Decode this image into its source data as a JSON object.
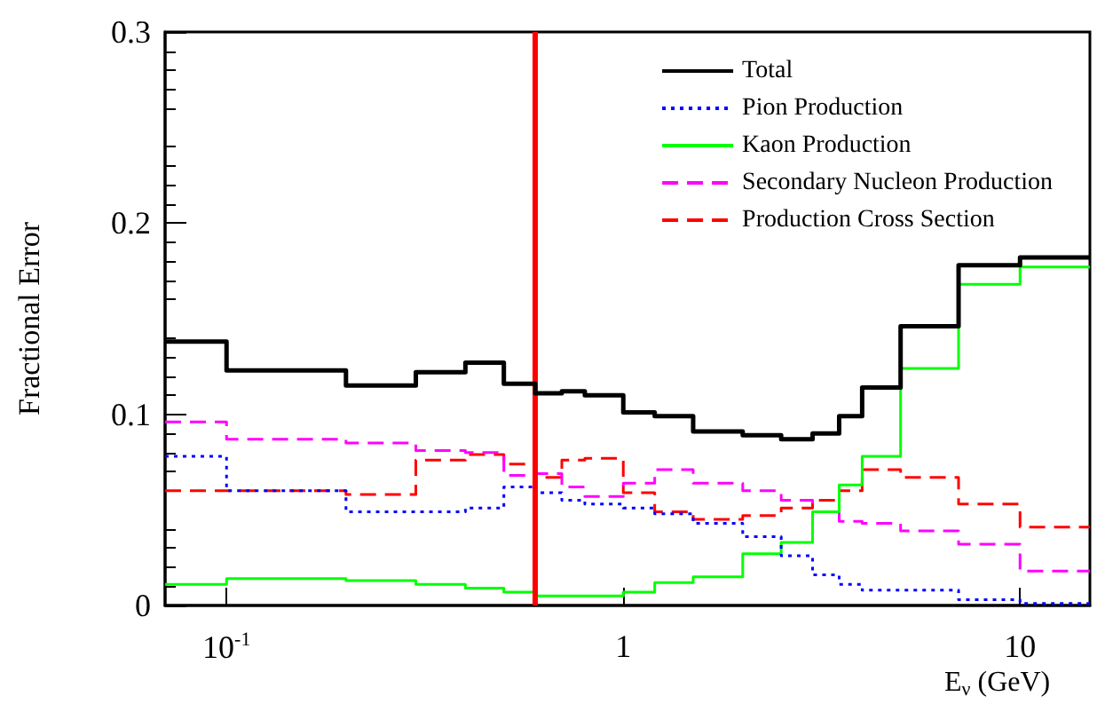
{
  "chart_data": {
    "type": "step",
    "xlabel": "E$_{ν}$ (GeV)",
    "ylabel": "Fractional Error",
    "x": [
      0.07,
      0.1,
      0.2,
      0.3,
      0.4,
      0.5,
      0.6,
      0.7,
      0.8,
      1.0,
      1.2,
      1.5,
      2,
      2.5,
      3,
      3.5,
      4,
      5,
      7,
      10,
      15
    ],
    "series": [
      {
        "name": "Total",
        "color": "#000000",
        "line_style": "solid",
        "values": [
          0.138,
          0.123,
          0.115,
          0.122,
          0.127,
          0.116,
          0.111,
          0.112,
          0.11,
          0.101,
          0.099,
          0.091,
          0.089,
          0.087,
          0.09,
          0.099,
          0.114,
          0.146,
          0.178,
          0.182,
          0.182
        ]
      },
      {
        "name": "Pion Production",
        "color": "#0000ff",
        "line_style": "dotted",
        "values": [
          0.078,
          0.06,
          0.049,
          0.049,
          0.051,
          0.062,
          0.059,
          0.055,
          0.053,
          0.051,
          0.048,
          0.043,
          0.036,
          0.026,
          0.016,
          0.011,
          0.008,
          0.008,
          0.003,
          0.001,
          0.001
        ]
      },
      {
        "name": "Kaon Production",
        "color": "#00ff00",
        "line_style": "solid",
        "values": [
          0.011,
          0.014,
          0.013,
          0.011,
          0.009,
          0.007,
          0.005,
          0.005,
          0.005,
          0.007,
          0.012,
          0.015,
          0.027,
          0.033,
          0.049,
          0.063,
          0.078,
          0.124,
          0.168,
          0.177,
          0.177
        ]
      },
      {
        "name": "Secondary Nucleon Production",
        "color": "#ff00ff",
        "line_style": "dashed",
        "values": [
          0.096,
          0.087,
          0.085,
          0.081,
          0.08,
          0.068,
          0.069,
          0.062,
          0.057,
          0.064,
          0.071,
          0.064,
          0.06,
          0.055,
          0.049,
          0.044,
          0.043,
          0.039,
          0.032,
          0.018,
          0.018
        ]
      },
      {
        "name": "Production Cross Section",
        "color": "#ff0000",
        "line_style": "dashed",
        "values": [
          0.06,
          0.06,
          0.058,
          0.076,
          0.079,
          0.074,
          0.067,
          0.076,
          0.077,
          0.059,
          0.049,
          0.045,
          0.047,
          0.051,
          0.055,
          0.06,
          0.071,
          0.067,
          0.053,
          0.041,
          0.041
        ]
      }
    ],
    "log": "x",
    "xlim": [
      0.07,
      15
    ],
    "xticks": [
      {
        "value": 0.1,
        "label": "10$^{-1}$"
      },
      1,
      10
    ],
    "ylim": [
      0,
      0.3
    ],
    "yticks": [
      0,
      0.1,
      0.2,
      0.3
    ],
    "ref_lines": [
      {
        "axis": "x",
        "value": 0.6,
        "color": "#ff0000"
      }
    ],
    "grid": false,
    "legend": "top right",
    "marker": "none"
  }
}
